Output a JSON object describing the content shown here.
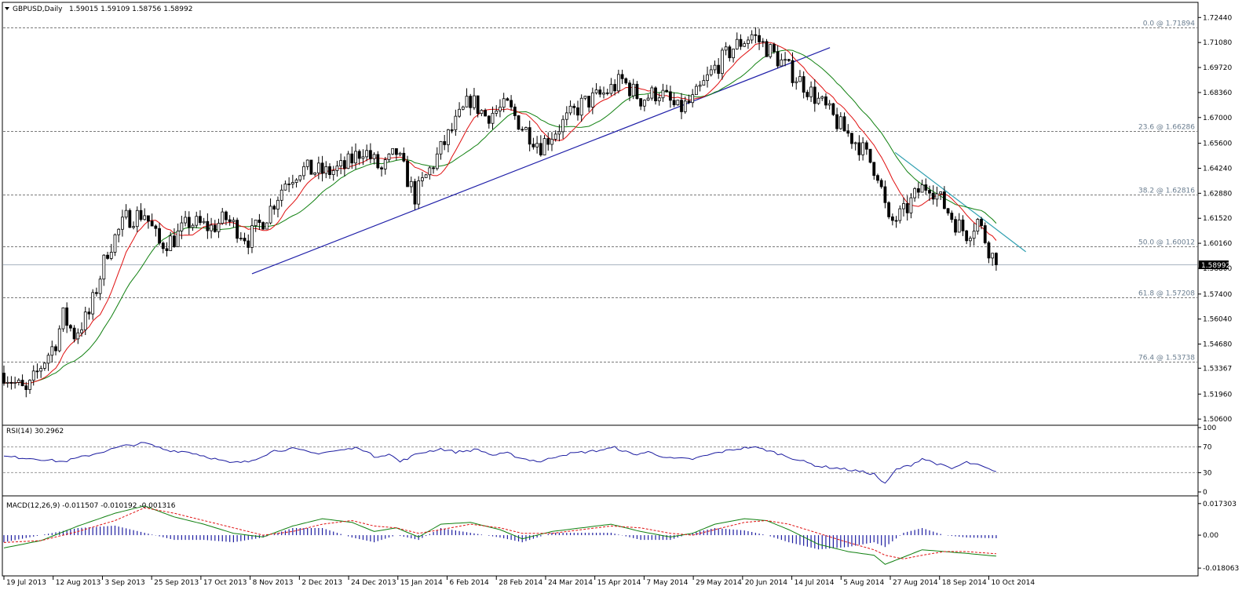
{
  "chart_data": {
    "type": "candlestick",
    "symbol_header": "GBPUSD,Daily",
    "ohlc_header": "1.59015 1.59109 1.58756 1.58992",
    "current_price_label": "1.58992",
    "current_price": 1.58992,
    "main_panel": {
      "ylim": [
        1.5035,
        1.7305
      ],
      "y_ticks": [
        "1.72440",
        "1.71080",
        "1.69720",
        "1.68360",
        "1.67000",
        "1.65600",
        "1.64240",
        "1.62880",
        "1.61520",
        "1.60160",
        "1.58800",
        "1.57400",
        "1.56040",
        "1.54680",
        "1.53367",
        "1.51960",
        "1.50600"
      ],
      "fib_levels": [
        {
          "label": "0.0 @ 1.71894",
          "value": 1.71894
        },
        {
          "label": "23.6 @ 1.66286",
          "value": 1.66286
        },
        {
          "label": "38.2 @ 1.62816",
          "value": 1.62816
        },
        {
          "label": "50.0 @ 1.60012",
          "value": 1.60012
        },
        {
          "label": "61.8 @ 1.57208",
          "value": 1.57208
        },
        {
          "label": "76.4 @ 1.53738",
          "value": 1.53738
        }
      ],
      "trendlines": [
        {
          "name": "support",
          "color": "#1f1fa8",
          "start": {
            "x": "8 Nov 2013",
            "y": 1.585
          },
          "end": {
            "x": "5 Aug 2014",
            "y": 1.708
          }
        },
        {
          "name": "resistance",
          "color": "#2f9fb0",
          "start": {
            "x": "11 Sep 2014",
            "y": 1.651
          },
          "end": {
            "x": "20 Oct 2014",
            "y": 1.597
          }
        }
      ],
      "ma_colors": {
        "fast": "#e01010",
        "slow": "#108010",
        "highlight": "#e8d800"
      }
    },
    "x_labels": [
      "19 Jul 2013",
      "12 Aug 2013",
      "3 Sep 2013",
      "25 Sep 2013",
      "17 Oct 2013",
      "8 Nov 2013",
      "2 Dec 2013",
      "24 Dec 2013",
      "15 Jan 2014",
      "6 Feb 2014",
      "28 Feb 2014",
      "24 Mar 2014",
      "15 Apr 2014",
      "7 May 2014",
      "29 May 2014",
      "20 Jun 2014",
      "14 Jul 2014",
      "5 Aug 2014",
      "27 Aug 2014",
      "18 Sep 2014",
      "10 Oct 2014"
    ],
    "price_path": [
      [
        0,
        1.531
      ],
      [
        6,
        1.52
      ],
      [
        10,
        1.535
      ],
      [
        14,
        1.548
      ],
      [
        16,
        1.562
      ],
      [
        19,
        1.552
      ],
      [
        23,
        1.563
      ],
      [
        28,
        1.598
      ],
      [
        33,
        1.615
      ],
      [
        38,
        1.618
      ],
      [
        42,
        1.601
      ],
      [
        46,
        1.604
      ],
      [
        50,
        1.613
      ],
      [
        56,
        1.61
      ],
      [
        60,
        1.615
      ],
      [
        66,
        1.604
      ],
      [
        71,
        1.617
      ],
      [
        76,
        1.635
      ],
      [
        80,
        1.642
      ],
      [
        87,
        1.64
      ],
      [
        92,
        1.643
      ],
      [
        97,
        1.653
      ],
      [
        102,
        1.641
      ],
      [
        106,
        1.651
      ],
      [
        111,
        1.627
      ],
      [
        116,
        1.645
      ],
      [
        120,
        1.66
      ],
      [
        126,
        1.68
      ],
      [
        130,
        1.671
      ],
      [
        136,
        1.676
      ],
      [
        140,
        1.665
      ],
      [
        145,
        1.655
      ],
      [
        151,
        1.667
      ],
      [
        156,
        1.677
      ],
      [
        162,
        1.683
      ],
      [
        167,
        1.69
      ],
      [
        172,
        1.68
      ],
      [
        177,
        1.684
      ],
      [
        182,
        1.674
      ],
      [
        186,
        1.679
      ],
      [
        192,
        1.697
      ],
      [
        197,
        1.708
      ],
      [
        202,
        1.715
      ],
      [
        206,
        1.708
      ],
      [
        211,
        1.698
      ],
      [
        216,
        1.688
      ],
      [
        221,
        1.677
      ],
      [
        226,
        1.665
      ],
      [
        231,
        1.655
      ],
      [
        236,
        1.64
      ],
      [
        239,
        1.612
      ],
      [
        243,
        1.618
      ],
      [
        247,
        1.63
      ],
      [
        250,
        1.634
      ],
      [
        253,
        1.625
      ],
      [
        257,
        1.613
      ],
      [
        260,
        1.607
      ],
      [
        263,
        1.614
      ],
      [
        266,
        1.599
      ],
      [
        268,
        1.59
      ]
    ],
    "rsi": {
      "label": "RSI(14) 30.2962",
      "ylim": [
        0,
        100
      ],
      "ticks": [
        "100",
        "70",
        "30",
        "0"
      ],
      "levels": [
        70,
        30
      ],
      "color": "#1c1ca0",
      "values": [
        [
          0,
          55
        ],
        [
          8,
          52
        ],
        [
          16,
          47
        ],
        [
          25,
          60
        ],
        [
          32,
          71
        ],
        [
          38,
          76
        ],
        [
          44,
          65
        ],
        [
          50,
          62
        ],
        [
          56,
          53
        ],
        [
          61,
          45
        ],
        [
          66,
          47
        ],
        [
          73,
          64
        ],
        [
          78,
          67
        ],
        [
          84,
          60
        ],
        [
          90,
          64
        ],
        [
          96,
          69
        ],
        [
          100,
          55
        ],
        [
          104,
          59
        ],
        [
          107,
          47
        ],
        [
          112,
          60
        ],
        [
          118,
          67
        ],
        [
          122,
          62
        ],
        [
          128,
          66
        ],
        [
          132,
          57
        ],
        [
          136,
          60
        ],
        [
          140,
          52
        ],
        [
          145,
          47
        ],
        [
          150,
          57
        ],
        [
          155,
          61
        ],
        [
          160,
          64
        ],
        [
          165,
          69
        ],
        [
          170,
          58
        ],
        [
          174,
          62
        ],
        [
          180,
          52
        ],
        [
          186,
          51
        ],
        [
          192,
          60
        ],
        [
          197,
          66
        ],
        [
          202,
          70
        ],
        [
          206,
          65
        ],
        [
          210,
          58
        ],
        [
          215,
          49
        ],
        [
          220,
          40
        ],
        [
          225,
          37
        ],
        [
          230,
          33
        ],
        [
          235,
          28
        ],
        [
          238,
          12
        ],
        [
          241,
          35
        ],
        [
          245,
          42
        ],
        [
          248,
          52
        ],
        [
          252,
          44
        ],
        [
          256,
          36
        ],
        [
          260,
          46
        ],
        [
          264,
          40
        ],
        [
          268,
          30
        ]
      ]
    },
    "macd": {
      "label": "MACD(12,26,9) -0.011507 -0.010192 -0.001316",
      "ylim": [
        -0.0206,
        0.0198
      ],
      "ticks": [
        "0.017303",
        "0.00",
        "-0.018063"
      ],
      "macd_color": "#108010",
      "signal_color": "#e01010",
      "hist_color": "#1c1ca0",
      "macd": [
        [
          0,
          -0.007
        ],
        [
          10,
          -0.003
        ],
        [
          20,
          0.005
        ],
        [
          30,
          0.012
        ],
        [
          38,
          0.016
        ],
        [
          46,
          0.01
        ],
        [
          54,
          0.006
        ],
        [
          62,
          0.001
        ],
        [
          70,
          -0.001
        ],
        [
          78,
          0.005
        ],
        [
          86,
          0.009
        ],
        [
          94,
          0.007
        ],
        [
          100,
          0.002
        ],
        [
          106,
          0.004
        ],
        [
          112,
          -0.001
        ],
        [
          118,
          0.006
        ],
        [
          126,
          0.007
        ],
        [
          134,
          0.003
        ],
        [
          140,
          -0.002
        ],
        [
          148,
          0.002
        ],
        [
          156,
          0.004
        ],
        [
          164,
          0.006
        ],
        [
          172,
          0.002
        ],
        [
          180,
          -0.001
        ],
        [
          186,
          0.001
        ],
        [
          192,
          0.006
        ],
        [
          200,
          0.009
        ],
        [
          206,
          0.008
        ],
        [
          212,
          0.003
        ],
        [
          220,
          -0.005
        ],
        [
          228,
          -0.009
        ],
        [
          235,
          -0.011
        ],
        [
          238,
          -0.016
        ],
        [
          243,
          -0.012
        ],
        [
          248,
          -0.008
        ],
        [
          254,
          -0.009
        ],
        [
          260,
          -0.01
        ],
        [
          268,
          -0.0115
        ]
      ],
      "signal": [
        [
          0,
          -0.004
        ],
        [
          10,
          -0.003
        ],
        [
          20,
          0.002
        ],
        [
          30,
          0.008
        ],
        [
          38,
          0.015
        ],
        [
          46,
          0.012
        ],
        [
          54,
          0.008
        ],
        [
          62,
          0.004
        ],
        [
          70,
          0.0
        ],
        [
          78,
          0.002
        ],
        [
          86,
          0.006
        ],
        [
          94,
          0.008
        ],
        [
          100,
          0.005
        ],
        [
          106,
          0.004
        ],
        [
          112,
          0.001
        ],
        [
          118,
          0.003
        ],
        [
          126,
          0.006
        ],
        [
          134,
          0.004
        ],
        [
          140,
          0.001
        ],
        [
          148,
          0.001
        ],
        [
          156,
          0.003
        ],
        [
          164,
          0.005
        ],
        [
          172,
          0.004
        ],
        [
          180,
          0.001
        ],
        [
          186,
          0.0
        ],
        [
          192,
          0.003
        ],
        [
          200,
          0.007
        ],
        [
          206,
          0.008
        ],
        [
          212,
          0.006
        ],
        [
          220,
          0.001
        ],
        [
          228,
          -0.004
        ],
        [
          235,
          -0.008
        ],
        [
          238,
          -0.011
        ],
        [
          243,
          -0.013
        ],
        [
          248,
          -0.011
        ],
        [
          254,
          -0.009
        ],
        [
          260,
          -0.009
        ],
        [
          268,
          -0.0102
        ]
      ]
    }
  }
}
